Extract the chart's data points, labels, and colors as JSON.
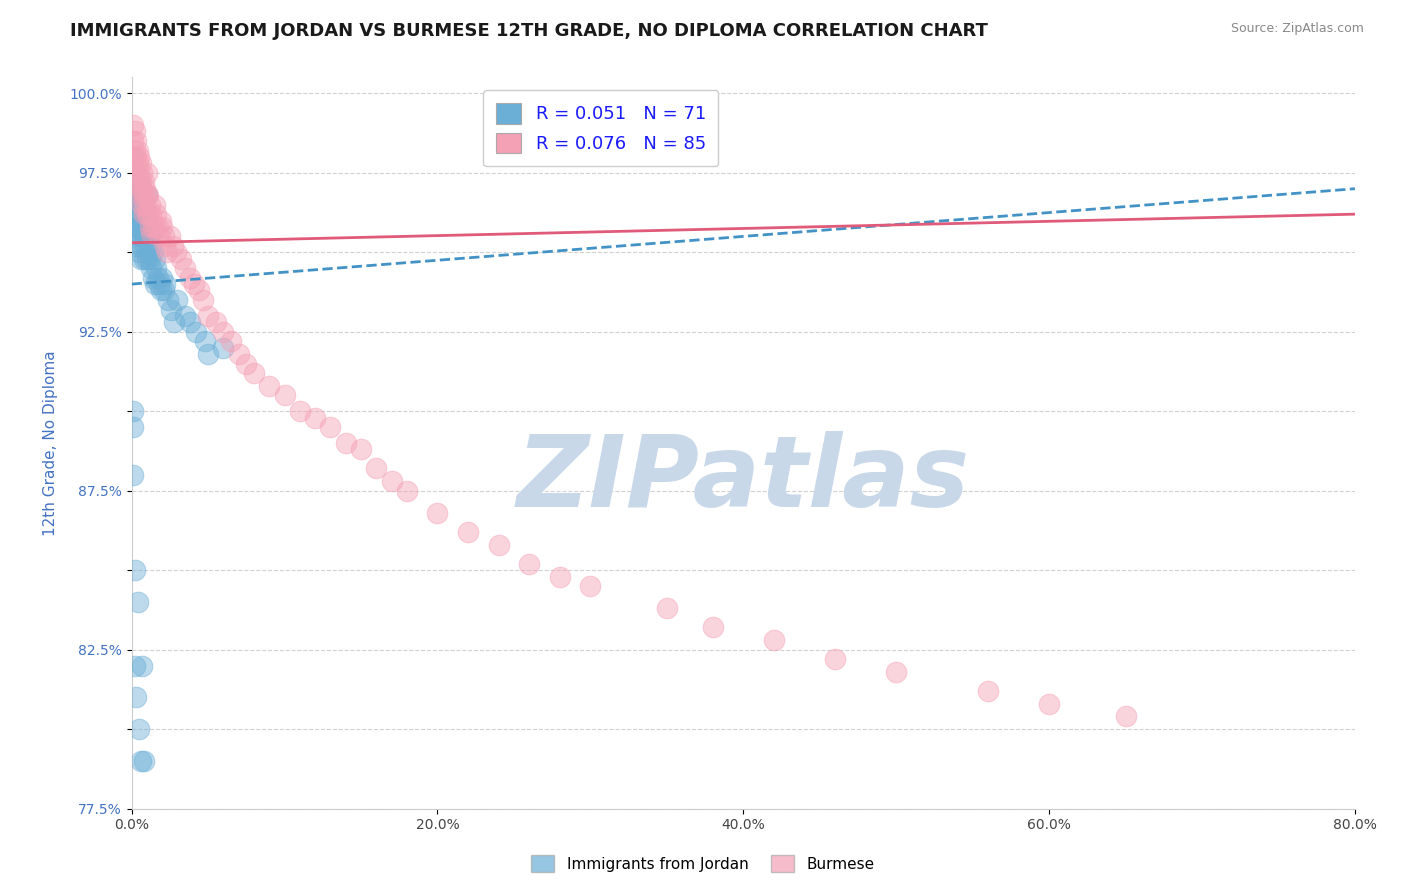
{
  "title": "IMMIGRANTS FROM JORDAN VS BURMESE 12TH GRADE, NO DIPLOMA CORRELATION CHART",
  "source_text": "Source: ZipAtlas.com",
  "xlabel": "",
  "ylabel": "12th Grade, No Diploma",
  "legend_label_blue": "Immigrants from Jordan",
  "legend_label_pink": "Burmese",
  "R_blue": 0.051,
  "N_blue": 71,
  "R_pink": 0.076,
  "N_pink": 85,
  "xlim": [
    0.0,
    0.8
  ],
  "ylim": [
    0.775,
    1.005
  ],
  "xticks": [
    0.0,
    0.2,
    0.4,
    0.6,
    0.8
  ],
  "xtick_labels": [
    "0.0%",
    "20.0%",
    "40.0%",
    "60.0%",
    "80.0%"
  ],
  "ytick_vals": [
    0.775,
    0.8,
    0.825,
    0.85,
    0.875,
    0.9,
    0.925,
    0.95,
    0.975,
    1.0
  ],
  "ytick_labels": [
    "77.5%",
    "",
    "82.5%",
    "",
    "87.5%",
    "",
    "92.5%",
    "",
    "97.5%",
    "100.0%"
  ],
  "color_blue": "#6baed6",
  "color_pink": "#f4a0b5",
  "color_blue_line": "#4292c6",
  "color_pink_line": "#e05a7a",
  "title_fontsize": 13,
  "axis_label_fontsize": 11,
  "tick_fontsize": 10,
  "watermark_text": "ZIPatlas",
  "watermark_color": "#c8d8e8",
  "blue_scatter_x": [
    0.001,
    0.001,
    0.002,
    0.002,
    0.002,
    0.002,
    0.003,
    0.003,
    0.003,
    0.003,
    0.004,
    0.004,
    0.004,
    0.005,
    0.005,
    0.005,
    0.005,
    0.006,
    0.006,
    0.006,
    0.006,
    0.007,
    0.007,
    0.007,
    0.008,
    0.008,
    0.008,
    0.009,
    0.009,
    0.01,
    0.01,
    0.01,
    0.01,
    0.011,
    0.011,
    0.012,
    0.012,
    0.013,
    0.013,
    0.014,
    0.014,
    0.015,
    0.015,
    0.016,
    0.017,
    0.018,
    0.019,
    0.02,
    0.021,
    0.022,
    0.024,
    0.026,
    0.028,
    0.03,
    0.035,
    0.038,
    0.042,
    0.048,
    0.05,
    0.06,
    0.001,
    0.001,
    0.001,
    0.002,
    0.002,
    0.003,
    0.004,
    0.005,
    0.006,
    0.007,
    0.008
  ],
  "blue_scatter_y": [
    0.98,
    0.972,
    0.975,
    0.968,
    0.96,
    0.958,
    0.97,
    0.965,
    0.958,
    0.952,
    0.968,
    0.962,
    0.955,
    0.972,
    0.965,
    0.958,
    0.95,
    0.968,
    0.96,
    0.955,
    0.948,
    0.965,
    0.958,
    0.952,
    0.962,
    0.955,
    0.948,
    0.96,
    0.952,
    0.968,
    0.962,
    0.955,
    0.948,
    0.958,
    0.95,
    0.955,
    0.948,
    0.952,
    0.945,
    0.95,
    0.942,
    0.948,
    0.94,
    0.945,
    0.942,
    0.94,
    0.938,
    0.942,
    0.938,
    0.94,
    0.935,
    0.932,
    0.928,
    0.935,
    0.93,
    0.928,
    0.925,
    0.922,
    0.918,
    0.92,
    0.9,
    0.895,
    0.88,
    0.85,
    0.82,
    0.81,
    0.84,
    0.8,
    0.79,
    0.82,
    0.79
  ],
  "pink_scatter_x": [
    0.001,
    0.001,
    0.002,
    0.002,
    0.002,
    0.003,
    0.003,
    0.003,
    0.004,
    0.004,
    0.004,
    0.005,
    0.005,
    0.005,
    0.006,
    0.006,
    0.006,
    0.007,
    0.007,
    0.007,
    0.008,
    0.008,
    0.008,
    0.009,
    0.009,
    0.01,
    0.01,
    0.01,
    0.011,
    0.011,
    0.012,
    0.012,
    0.013,
    0.013,
    0.014,
    0.015,
    0.015,
    0.016,
    0.017,
    0.018,
    0.019,
    0.02,
    0.021,
    0.022,
    0.023,
    0.025,
    0.027,
    0.029,
    0.032,
    0.035,
    0.038,
    0.041,
    0.044,
    0.047,
    0.05,
    0.055,
    0.06,
    0.065,
    0.07,
    0.075,
    0.08,
    0.09,
    0.1,
    0.11,
    0.12,
    0.13,
    0.14,
    0.15,
    0.16,
    0.17,
    0.18,
    0.2,
    0.22,
    0.24,
    0.26,
    0.28,
    0.3,
    0.35,
    0.38,
    0.42,
    0.46,
    0.5,
    0.56,
    0.6,
    0.65
  ],
  "pink_scatter_y": [
    0.99,
    0.985,
    0.988,
    0.982,
    0.978,
    0.985,
    0.98,
    0.975,
    0.982,
    0.978,
    0.972,
    0.98,
    0.975,
    0.97,
    0.978,
    0.972,
    0.968,
    0.975,
    0.97,
    0.965,
    0.972,
    0.968,
    0.962,
    0.97,
    0.965,
    0.975,
    0.968,
    0.962,
    0.968,
    0.962,
    0.965,
    0.958,
    0.962,
    0.956,
    0.958,
    0.965,
    0.958,
    0.962,
    0.958,
    0.955,
    0.96,
    0.958,
    0.955,
    0.952,
    0.95,
    0.955,
    0.952,
    0.95,
    0.948,
    0.945,
    0.942,
    0.94,
    0.938,
    0.935,
    0.93,
    0.928,
    0.925,
    0.922,
    0.918,
    0.915,
    0.912,
    0.908,
    0.905,
    0.9,
    0.898,
    0.895,
    0.89,
    0.888,
    0.882,
    0.878,
    0.875,
    0.868,
    0.862,
    0.858,
    0.852,
    0.848,
    0.845,
    0.838,
    0.832,
    0.828,
    0.822,
    0.818,
    0.812,
    0.808,
    0.804
  ],
  "blue_line_x0": 0.0,
  "blue_line_x1": 0.8,
  "blue_line_y0": 0.94,
  "blue_line_y1": 0.97,
  "pink_line_x0": 0.0,
  "pink_line_x1": 0.8,
  "pink_line_y0": 0.953,
  "pink_line_y1": 0.962
}
